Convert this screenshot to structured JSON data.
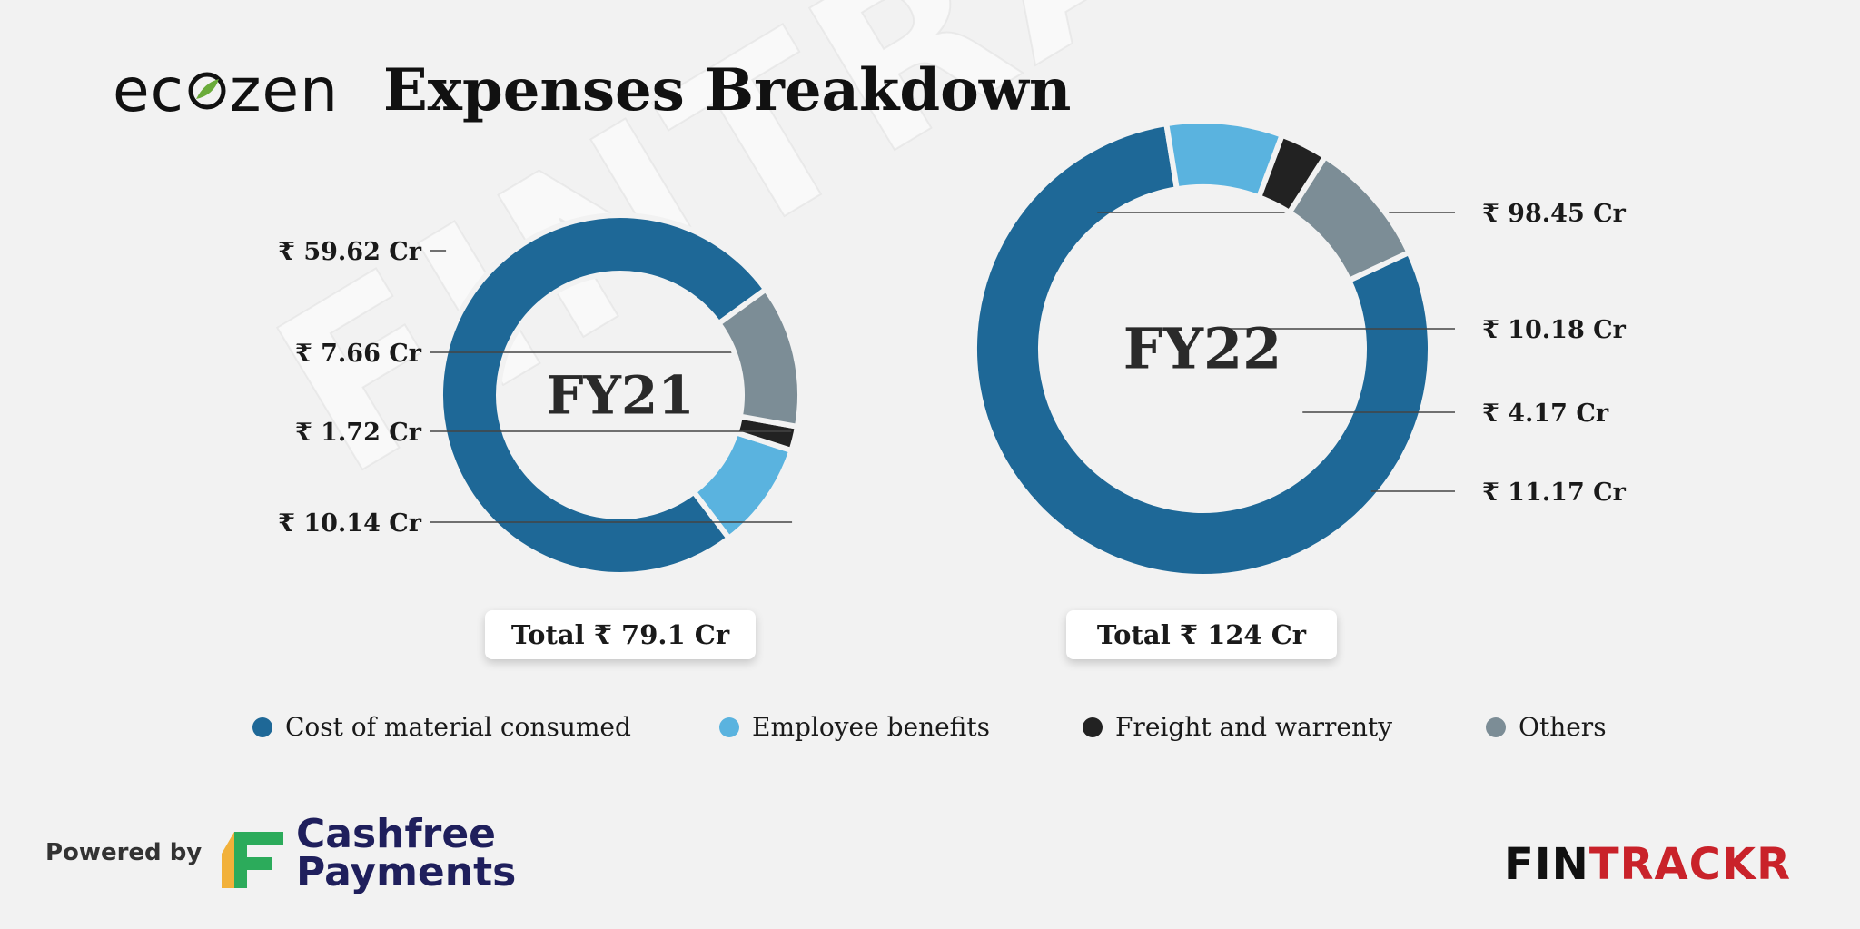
{
  "watermark": "FINTRACKR",
  "brand": {
    "name": "ecozen"
  },
  "title": "Expenses Breakdown",
  "colors": {
    "cost_of_material": "#1e6897",
    "employee_benefits": "#5ab3df",
    "freight": "#222222",
    "others": "#7c8d96"
  },
  "chart_data": [
    {
      "type": "pie",
      "center_label": "FY21",
      "total_label": "Total ₹ 79.1 Cr",
      "total": 79.1,
      "categories": [
        "Cost of material consumed",
        "Employee benefits",
        "Freight and warrenty",
        "Others"
      ],
      "values": [
        59.62,
        7.66,
        1.72,
        10.14
      ],
      "data_labels": [
        "₹ 59.62 Cr",
        "₹ 7.66 Cr",
        "₹ 1.72 Cr",
        "₹ 10.14 Cr"
      ],
      "label_side": "left"
    },
    {
      "type": "pie",
      "center_label": "FY22",
      "total_label": "Total ₹ 124 Cr",
      "total": 124,
      "categories": [
        "Cost of material consumed",
        "Employee benefits",
        "Freight and warrenty",
        "Others"
      ],
      "values": [
        98.45,
        10.18,
        4.17,
        11.17
      ],
      "data_labels": [
        "₹ 98.45 Cr",
        "₹ 10.18 Cr",
        "₹ 4.17 Cr",
        "₹ 11.17 Cr"
      ],
      "label_side": "right"
    }
  ],
  "legend": {
    "placement": "bottom",
    "items": [
      {
        "label": "Cost of material consumed",
        "color": "#1e6897"
      },
      {
        "label": "Employee benefits",
        "color": "#5ab3df"
      },
      {
        "label": "Freight and warrenty",
        "color": "#222222"
      },
      {
        "label": "Others",
        "color": "#7c8d96"
      }
    ]
  },
  "footer": {
    "powered_by": "Powered by",
    "cashfree_line1": "Cashfree",
    "cashfree_line2": "Payments",
    "fintrackr_a": "FIN",
    "fintrackr_b": "TRACKR"
  }
}
